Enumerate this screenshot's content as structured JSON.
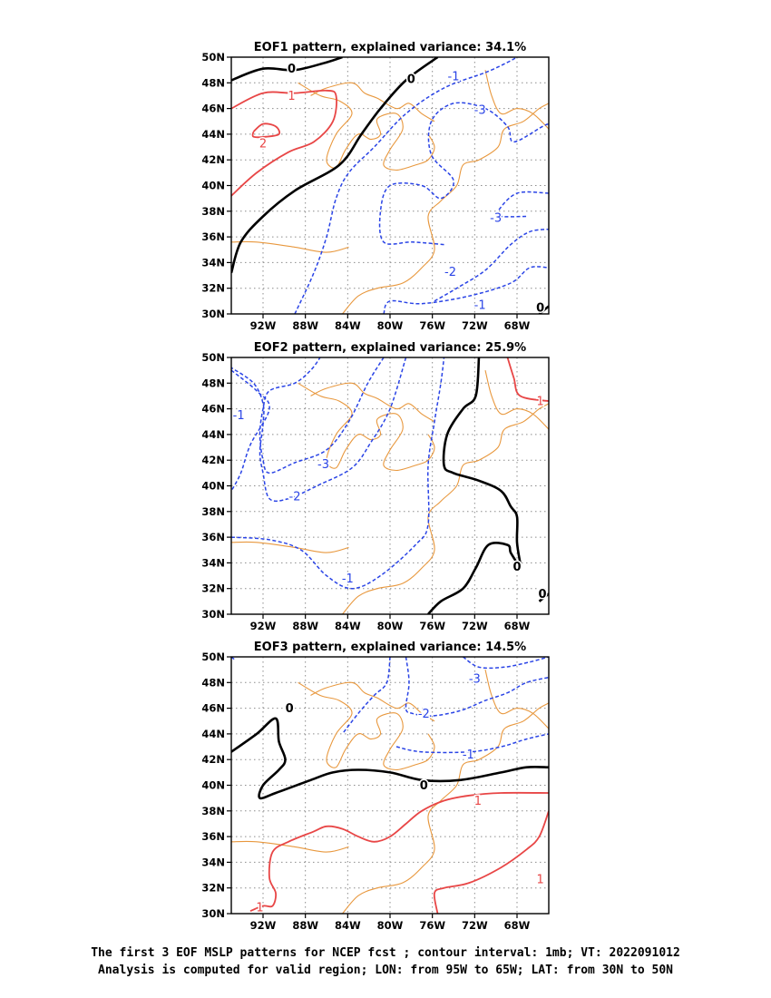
{
  "colors": {
    "positive": "#e84646",
    "negative": "#2a44e6",
    "zero": "#000000",
    "coast": "#e8983e",
    "grid": "#8c8c8c"
  },
  "lon_ticks": [
    "92W",
    "88W",
    "84W",
    "80W",
    "76W",
    "72W",
    "68W"
  ],
  "lon_values": [
    -92,
    -88,
    -84,
    -80,
    -76,
    -72,
    -68
  ],
  "lat_ticks": [
    "50N",
    "48N",
    "46N",
    "44N",
    "42N",
    "40N",
    "38N",
    "36N",
    "34N",
    "32N",
    "30N"
  ],
  "lat_values": [
    50,
    48,
    46,
    44,
    42,
    40,
    38,
    36,
    34,
    32,
    30
  ],
  "extent": {
    "lon": [
      -95,
      -65
    ],
    "lat": [
      30,
      50
    ]
  },
  "panels": [
    {
      "title": "EOF1 pattern, explained variance: 34.1%",
      "labels": [
        {
          "text": "0",
          "lon": -89.3,
          "lat": 49.1,
          "type": "zero"
        },
        {
          "text": "0",
          "lon": -78.0,
          "lat": 48.3,
          "type": "zero"
        },
        {
          "text": "0",
          "lon": -65.8,
          "lat": 30.5,
          "type": "zero"
        },
        {
          "text": "1",
          "lon": -89.3,
          "lat": 47.0,
          "type": "positive"
        },
        {
          "text": "2",
          "lon": -92.0,
          "lat": 43.3,
          "type": "positive"
        },
        {
          "text": "-1",
          "lon": -74.0,
          "lat": 48.5,
          "type": "negative"
        },
        {
          "text": "-3",
          "lon": -71.5,
          "lat": 45.9,
          "type": "negative"
        },
        {
          "text": "-3",
          "lon": -70.0,
          "lat": 37.5,
          "type": "negative"
        },
        {
          "text": "-2",
          "lon": -74.3,
          "lat": 33.3,
          "type": "negative"
        },
        {
          "text": "-1",
          "lon": -71.5,
          "lat": 30.7,
          "type": "negative"
        }
      ]
    },
    {
      "title": "EOF2 pattern, explained variance: 25.9%",
      "labels": [
        {
          "text": "-1",
          "lon": -94.3,
          "lat": 45.5,
          "type": "negative"
        },
        {
          "text": "-3",
          "lon": -86.3,
          "lat": 41.7,
          "type": "negative"
        },
        {
          "text": "-2",
          "lon": -89.0,
          "lat": 39.2,
          "type": "negative"
        },
        {
          "text": "-1",
          "lon": -84.0,
          "lat": 32.8,
          "type": "negative"
        },
        {
          "text": "1",
          "lon": -65.8,
          "lat": 46.6,
          "type": "positive"
        },
        {
          "text": "0",
          "lon": -68.0,
          "lat": 33.7,
          "type": "zero"
        },
        {
          "text": "0",
          "lon": -65.6,
          "lat": 31.6,
          "type": "zero"
        }
      ]
    },
    {
      "title": "EOF3 pattern, explained variance: 14.5%",
      "labels": [
        {
          "text": "-3",
          "lon": -72.0,
          "lat": 48.3,
          "type": "negative"
        },
        {
          "text": "-2",
          "lon": -76.8,
          "lat": 45.6,
          "type": "negative"
        },
        {
          "text": "-1",
          "lon": -72.6,
          "lat": 42.4,
          "type": "negative"
        },
        {
          "text": "0",
          "lon": -89.5,
          "lat": 46.0,
          "type": "zero"
        },
        {
          "text": "0",
          "lon": -76.8,
          "lat": 40.0,
          "type": "zero"
        },
        {
          "text": "1",
          "lon": -71.7,
          "lat": 38.8,
          "type": "positive"
        },
        {
          "text": "1",
          "lon": -65.8,
          "lat": 32.7,
          "type": "positive"
        },
        {
          "text": "1",
          "lon": -92.3,
          "lat": 30.5,
          "type": "positive"
        }
      ]
    }
  ],
  "caption": [
    "The first 3 EOF MSLP patterns for NCEP fcst ; contour interval: 1mb; VT: 2022091012",
    "Analysis is computed for valid region; LON: from 95W to 65W; LAT: from 30N to 50N"
  ]
}
